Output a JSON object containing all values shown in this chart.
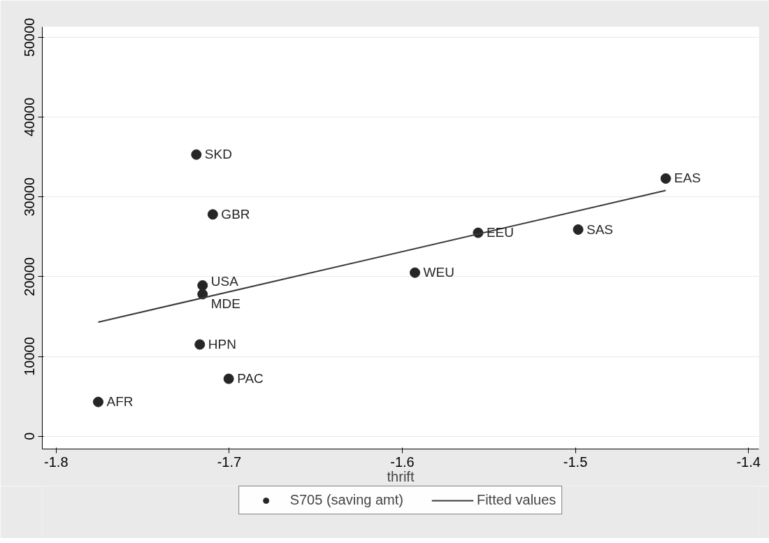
{
  "chart_data": {
    "type": "scatter",
    "xlabel": "thrift",
    "series": [
      {
        "name": "S705 (saving amt)",
        "type": "scatter",
        "marker": "circle",
        "color": "#262626",
        "x": [
          -1.719,
          -1.7095,
          -1.7154,
          -1.7154,
          -1.717,
          -1.7003,
          -1.7757,
          -1.5927,
          -1.5562,
          -1.4984,
          -1.4478
        ],
        "values": [
          35300,
          27800,
          18900,
          17800,
          11500,
          7200,
          4300,
          20500,
          25500,
          25900,
          32300
        ]
      },
      {
        "name": "Fitted values",
        "type": "line",
        "color": "#3a3a3a",
        "x": [
          -1.7757,
          -1.4478
        ],
        "values": [
          14300,
          30800
        ]
      }
    ],
    "annotations": [
      {
        "text": "SKD",
        "x": -1.719,
        "y": 35300
      },
      {
        "text": "GBR",
        "x": -1.7095,
        "y": 27800
      },
      {
        "text": "USA",
        "x": -1.7154,
        "y": 18900
      },
      {
        "text": "MDE",
        "x": -1.7154,
        "y": 17800
      },
      {
        "text": "HPN",
        "x": -1.717,
        "y": 11500
      },
      {
        "text": "PAC",
        "x": -1.7003,
        "y": 7200
      },
      {
        "text": "AFR",
        "x": -1.7757,
        "y": 4300
      },
      {
        "text": "WEU",
        "x": -1.5927,
        "y": 20500
      },
      {
        "text": "EEU",
        "x": -1.5562,
        "y": 25500
      },
      {
        "text": "SAS",
        "x": -1.4984,
        "y": 25900
      },
      {
        "text": "EAS",
        "x": -1.4478,
        "y": 32300
      }
    ],
    "xlim": [
      -1.808,
      -1.394
    ],
    "ylim": [
      -1600,
      51300
    ],
    "xticks": [
      -1.8,
      -1.7,
      -1.6,
      -1.5,
      -1.4
    ],
    "yticks": [
      0,
      10000,
      20000,
      30000,
      40000,
      50000
    ],
    "grid": "y",
    "legend": "bottom"
  }
}
